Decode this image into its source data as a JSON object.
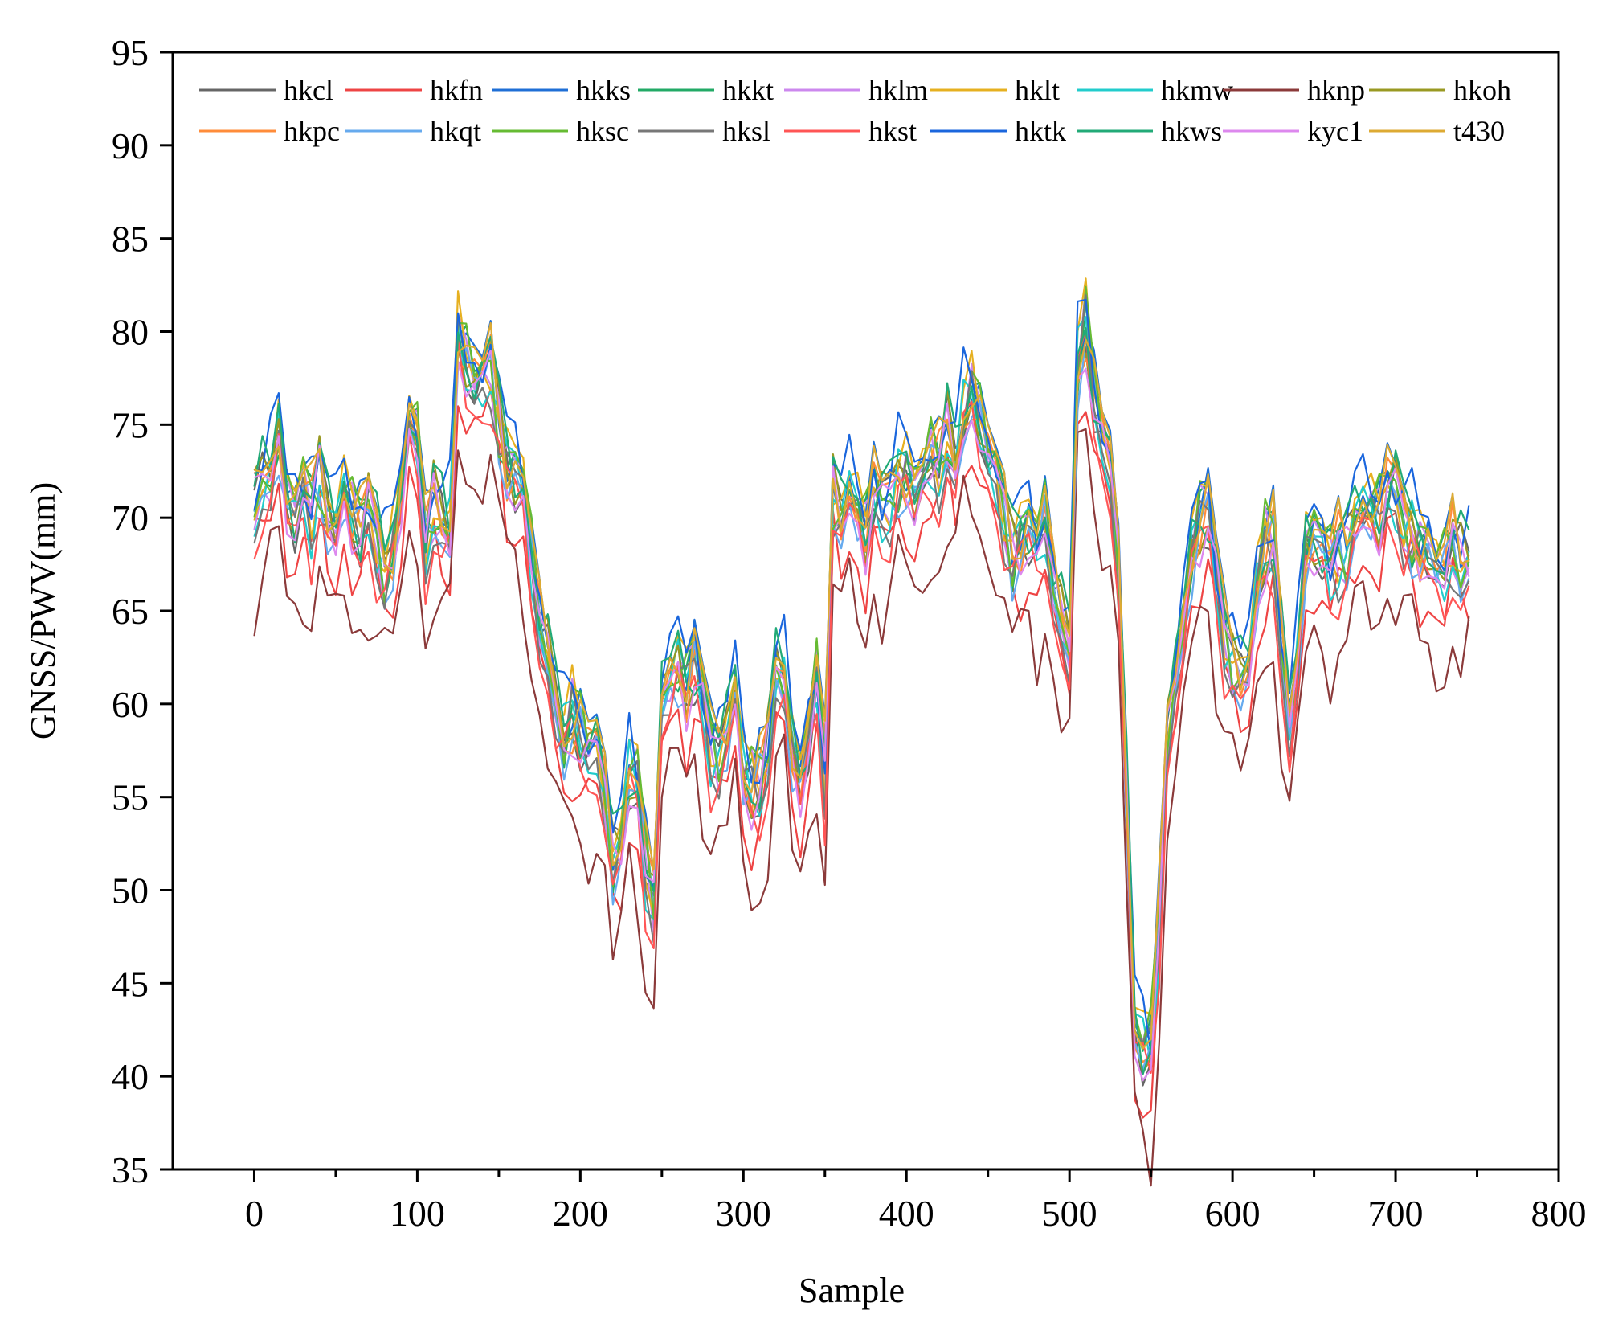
{
  "chart_data": {
    "type": "line",
    "title": "",
    "xlabel": "Sample",
    "ylabel": "GNSS/PWV(mm)",
    "xlim": [
      -50,
      800
    ],
    "ylim": [
      35,
      95
    ],
    "xticks": [
      0,
      100,
      200,
      300,
      400,
      500,
      600,
      700,
      800
    ],
    "yticks": [
      35,
      40,
      45,
      50,
      55,
      60,
      65,
      70,
      75,
      80,
      85,
      90,
      95
    ],
    "x_start": 0,
    "x_step": 5,
    "x_end": 745,
    "legend_position": "top",
    "base_profile": [
      70,
      72,
      72,
      74,
      71,
      70,
      71,
      70,
      72,
      70,
      69,
      71,
      70,
      69,
      70,
      69,
      67,
      68,
      71,
      75,
      74,
      68,
      70,
      70,
      69,
      79,
      78,
      77,
      77,
      78,
      75,
      73,
      72,
      71,
      68,
      64,
      62,
      60,
      58,
      59,
      58,
      57,
      58,
      55,
      51,
      53,
      56,
      55,
      51,
      49,
      60,
      61,
      62,
      61,
      62,
      60,
      58,
      57,
      58,
      61,
      56,
      55,
      55,
      57,
      62,
      61,
      57,
      56,
      58,
      61,
      56,
      71,
      70,
      71,
      70,
      69,
      71,
      70,
      71,
      72,
      72,
      71,
      72,
      73,
      72,
      74,
      73,
      75,
      76,
      75,
      73,
      72,
      70,
      68,
      69,
      69,
      68,
      70,
      66,
      64,
      63,
      78,
      80,
      76,
      74,
      73,
      67,
      55,
      43,
      41,
      41,
      48,
      58,
      61,
      64,
      68,
      70,
      70,
      67,
      64,
      62,
      61,
      62,
      66,
      68,
      68,
      63,
      59,
      62,
      68,
      69,
      68,
      67,
      68,
      68,
      70,
      70,
      70,
      70,
      71,
      71,
      70,
      69,
      68,
      68,
      67,
      67,
      68,
      67,
      68
    ],
    "series": [
      {
        "name": "hkcl",
        "color": "#666666",
        "offset": 0.2,
        "phase": 0.3
      },
      {
        "name": "hkfn",
        "color": "#ee4444",
        "offset": -2.3,
        "phase": 1.1
      },
      {
        "name": "hkks",
        "color": "#1f6fd6",
        "offset": 1.2,
        "phase": 2.0
      },
      {
        "name": "hkkt",
        "color": "#22aa66",
        "offset": 0.6,
        "phase": 2.7
      },
      {
        "name": "hklm",
        "color": "#cc88ee",
        "offset": 0.3,
        "phase": 3.4
      },
      {
        "name": "hklt",
        "color": "#e6b020",
        "offset": 0.8,
        "phase": 4.1
      },
      {
        "name": "hkmw",
        "color": "#22cccc",
        "offset": 0.0,
        "phase": 4.8
      },
      {
        "name": "hknp",
        "color": "#8b3a3a",
        "offset": -5.0,
        "phase": 5.5
      },
      {
        "name": "hkoh",
        "color": "#999922",
        "offset": 0.5,
        "phase": 0.7
      },
      {
        "name": "hkpc",
        "color": "#ff8c3a",
        "offset": 0.4,
        "phase": 1.5
      },
      {
        "name": "hkqt",
        "color": "#66aaee",
        "offset": -0.2,
        "phase": 2.3
      },
      {
        "name": "hksc",
        "color": "#66bb33",
        "offset": 0.7,
        "phase": 3.0
      },
      {
        "name": "hksl",
        "color": "#777777",
        "offset": -0.4,
        "phase": 3.8
      },
      {
        "name": "hkst",
        "color": "#ff5555",
        "offset": -1.3,
        "phase": 4.5
      },
      {
        "name": "hktk",
        "color": "#1a66dd",
        "offset": 1.6,
        "phase": 5.2
      },
      {
        "name": "hkws",
        "color": "#22aa77",
        "offset": 0.9,
        "phase": 0.1
      },
      {
        "name": "kyc1",
        "color": "#dd88ee",
        "offset": -0.1,
        "phase": 0.9
      },
      {
        "name": "t430",
        "color": "#ddaa33",
        "offset": 1.0,
        "phase": 1.8
      }
    ]
  }
}
